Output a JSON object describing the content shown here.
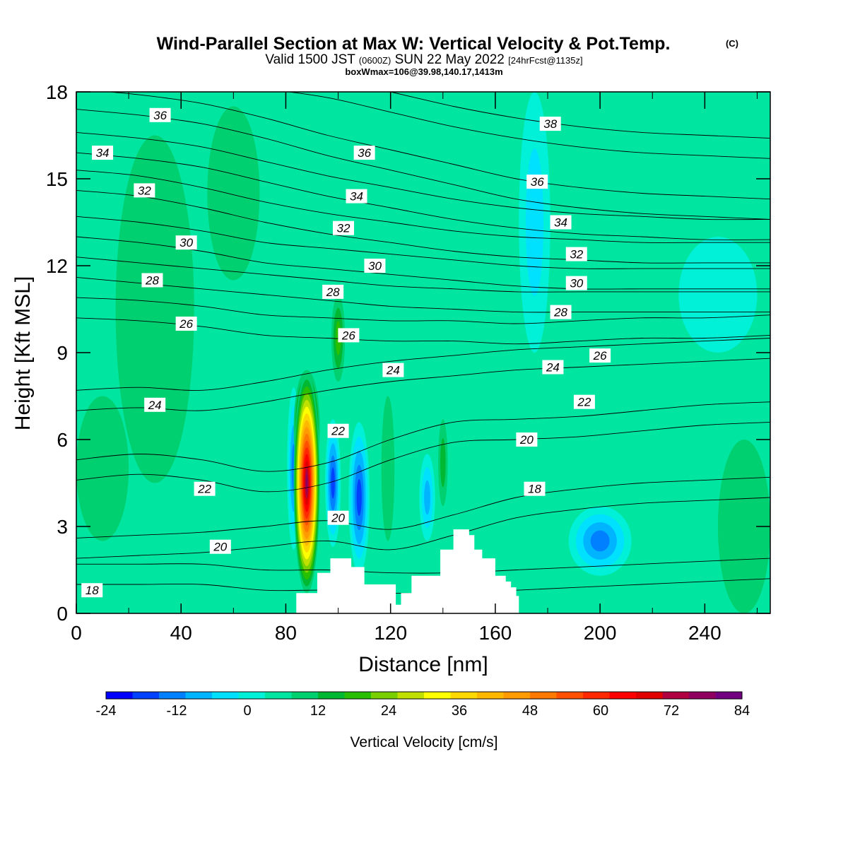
{
  "title": {
    "main": "Wind-Parallel Section at Max W: Vertical Velocity & Pot.Temp.",
    "copyright": "(C)",
    "valid_a": "Valid 1500 JST",
    "valid_b": "(0600Z)",
    "valid_c": "SUN 22 May 2022",
    "valid_d": "[24hrFcst@1135z]",
    "boxwmax": "boxWmax=106@39.98,140.17,1413m"
  },
  "chart_data": {
    "type": "heatmap",
    "xlabel": "Distance [nm]",
    "ylabel": "Height [Kft MSL]",
    "xlim": [
      0,
      265
    ],
    "ylim": [
      0,
      18
    ],
    "xticks": [
      "0",
      "40",
      "80",
      "120",
      "160",
      "200",
      "240"
    ],
    "yticks": [
      "0",
      "3",
      "6",
      "9",
      "12",
      "15",
      "18"
    ],
    "colorbar": {
      "label": "Vertical Velocity [cm/s]",
      "min": -24,
      "max": 84,
      "step": 4,
      "tick_labels": [
        "-24",
        "-12",
        "0",
        "12",
        "24",
        "36",
        "48",
        "60",
        "72",
        "84"
      ],
      "colors": [
        "#0000ff",
        "#0040ff",
        "#0080ff",
        "#00b4ff",
        "#00e0ff",
        "#00f0d8",
        "#00e6a0",
        "#00d070",
        "#00b832",
        "#28c000",
        "#78d000",
        "#c0e000",
        "#ffff00",
        "#ffd800",
        "#ffb800",
        "#ff9a00",
        "#ff7800",
        "#ff5000",
        "#ff2800",
        "#ff0000",
        "#e00000",
        "#b00040",
        "#900060",
        "#700080"
      ]
    },
    "background_w": 2,
    "terrain": {
      "name": "terrain",
      "x": [
        84,
        90,
        92,
        97,
        103,
        105,
        110,
        118,
        122,
        124,
        128,
        134,
        139,
        144,
        150,
        152,
        155,
        160,
        164,
        166,
        168,
        169
      ],
      "height": [
        0.7,
        0.7,
        1.4,
        1.9,
        1.9,
        1.6,
        1.0,
        1.0,
        0.3,
        0.7,
        1.3,
        1.3,
        2.2,
        2.9,
        2.7,
        2.2,
        1.9,
        1.3,
        1.1,
        0.9,
        0.6,
        0.3
      ]
    },
    "w_features": [
      {
        "x": 88,
        "h": 4.5,
        "rx": 5,
        "ry": 3.8,
        "w": 66
      },
      {
        "x": 88,
        "h": 6.4,
        "rx": 5,
        "ry": 2.0,
        "w": 40
      },
      {
        "x": 100,
        "h": 9.5,
        "rx": 2.6,
        "ry": 1.5,
        "w": 14
      },
      {
        "x": 108,
        "h": 4.0,
        "rx": 4,
        "ry": 2.6,
        "w": -20
      },
      {
        "x": 98,
        "h": 4.5,
        "rx": 3,
        "ry": 2.2,
        "w": -18
      },
      {
        "x": 83,
        "h": 5.0,
        "rx": 2.5,
        "ry": 2.8,
        "w": -14
      },
      {
        "x": 119,
        "h": 5.0,
        "rx": 2.5,
        "ry": 2.5,
        "w": 8
      },
      {
        "x": 134,
        "h": 4.0,
        "rx": 3,
        "ry": 1.5,
        "w": -12
      },
      {
        "x": 140,
        "h": 5.2,
        "rx": 1.8,
        "ry": 1.5,
        "w": 10
      },
      {
        "x": 200,
        "h": 2.5,
        "rx": 12,
        "ry": 1.2,
        "w": -14
      },
      {
        "x": 175,
        "h": 13.5,
        "rx": 6,
        "ry": 4.5,
        "w": -6
      },
      {
        "x": 30,
        "h": 10.5,
        "rx": 15,
        "ry": 6,
        "w": 6
      },
      {
        "x": 60,
        "h": 14.5,
        "rx": 10,
        "ry": 3,
        "w": 5
      },
      {
        "x": 10,
        "h": 5,
        "rx": 10,
        "ry": 2.5,
        "w": 5
      },
      {
        "x": 255,
        "h": 3,
        "rx": 10,
        "ry": 3,
        "w": 6
      },
      {
        "x": 245,
        "h": 11,
        "rx": 15,
        "ry": 2,
        "w": -5
      }
    ],
    "theta_contours": [
      {
        "label": "18",
        "h": [
          1.0,
          1.0,
          1.0,
          0.8,
          0.8,
          0.7,
          0.7,
          0.8,
          0.9,
          1.0,
          1.1,
          1.2
        ]
      },
      {
        "label": "20",
        "h": [
          1.9,
          2.0,
          2.1,
          2.3,
          2.5,
          2.2,
          2.7,
          3.3,
          3.6,
          3.8,
          3.9,
          4.0
        ]
      },
      {
        "label": "22",
        "h": [
          4.6,
          4.8,
          4.6,
          4.2,
          4.5,
          5.3,
          5.9,
          6.0,
          6.1,
          6.3,
          6.5,
          6.6
        ]
      },
      {
        "label": "24",
        "h": [
          7.0,
          7.1,
          7.0,
          7.3,
          7.7,
          8.0,
          8.2,
          8.4,
          8.5,
          8.6,
          8.7,
          8.8
        ]
      },
      {
        "label": "26",
        "h": [
          10.2,
          10.1,
          9.9,
          9.6,
          9.5,
          9.4,
          9.4,
          9.3,
          9.4,
          9.5,
          9.5,
          9.6
        ]
      },
      {
        "label": "28",
        "h": [
          11.6,
          11.4,
          11.2,
          11.0,
          10.8,
          10.6,
          10.5,
          10.4,
          10.4,
          10.4,
          10.4,
          10.4
        ]
      },
      {
        "label": "30",
        "h": [
          13.0,
          12.8,
          12.5,
          12.1,
          11.9,
          11.7,
          11.5,
          11.3,
          11.2,
          11.2,
          11.2,
          11.2
        ]
      },
      {
        "label": "32",
        "h": [
          14.6,
          14.4,
          14.0,
          13.5,
          13.1,
          12.8,
          12.5,
          12.3,
          12.2,
          12.1,
          12.1,
          12.1
        ]
      },
      {
        "label": "34",
        "h": [
          15.9,
          15.7,
          15.4,
          14.9,
          14.4,
          14.0,
          13.6,
          13.3,
          13.1,
          13.0,
          12.9,
          12.9
        ]
      },
      {
        "label": "36",
        "h": [
          17.4,
          17.2,
          16.9,
          16.4,
          15.8,
          15.3,
          14.8,
          14.3,
          14.0,
          13.8,
          13.7,
          13.6
        ]
      },
      {
        "label": "38",
        "h": [
          18.6,
          18.4,
          18.3,
          18.1,
          17.8,
          17.3,
          16.8,
          16.4,
          16.1,
          15.9,
          15.8,
          15.7
        ]
      }
    ],
    "contour_x": [
      0,
      24,
      48,
      72,
      96,
      120,
      144,
      168,
      192,
      216,
      240,
      265
    ],
    "contour_labels": [
      {
        "text": "36",
        "x": 32,
        "h": 17.2
      },
      {
        "text": "34",
        "x": 10,
        "h": 15.9
      },
      {
        "text": "32",
        "x": 26,
        "h": 14.6
      },
      {
        "text": "30",
        "x": 42,
        "h": 12.8
      },
      {
        "text": "28",
        "x": 29,
        "h": 11.5
      },
      {
        "text": "26",
        "x": 42,
        "h": 10.0
      },
      {
        "text": "24",
        "x": 30,
        "h": 7.2
      },
      {
        "text": "22",
        "x": 49,
        "h": 4.3
      },
      {
        "text": "20",
        "x": 55,
        "h": 2.3
      },
      {
        "text": "18",
        "x": 6,
        "h": 0.8
      },
      {
        "text": "36",
        "x": 110,
        "h": 15.9
      },
      {
        "text": "34",
        "x": 107,
        "h": 14.4
      },
      {
        "text": "32",
        "x": 102,
        "h": 13.3
      },
      {
        "text": "30",
        "x": 114,
        "h": 12.0
      },
      {
        "text": "28",
        "x": 98,
        "h": 11.1
      },
      {
        "text": "26",
        "x": 104,
        "h": 9.6
      },
      {
        "text": "24",
        "x": 121,
        "h": 8.4
      },
      {
        "text": "22",
        "x": 100,
        "h": 6.3
      },
      {
        "text": "20",
        "x": 100,
        "h": 3.3
      },
      {
        "text": "38",
        "x": 181,
        "h": 16.9
      },
      {
        "text": "36",
        "x": 176,
        "h": 14.9
      },
      {
        "text": "34",
        "x": 185,
        "h": 13.5
      },
      {
        "text": "32",
        "x": 191,
        "h": 12.4
      },
      {
        "text": "30",
        "x": 191,
        "h": 11.4
      },
      {
        "text": "28",
        "x": 185,
        "h": 10.4
      },
      {
        "text": "26",
        "x": 200,
        "h": 8.9
      },
      {
        "text": "24",
        "x": 182,
        "h": 8.5
      },
      {
        "text": "22",
        "x": 194,
        "h": 7.3
      },
      {
        "text": "20",
        "x": 172,
        "h": 6.0
      },
      {
        "text": "18",
        "x": 175,
        "h": 4.3
      }
    ]
  }
}
